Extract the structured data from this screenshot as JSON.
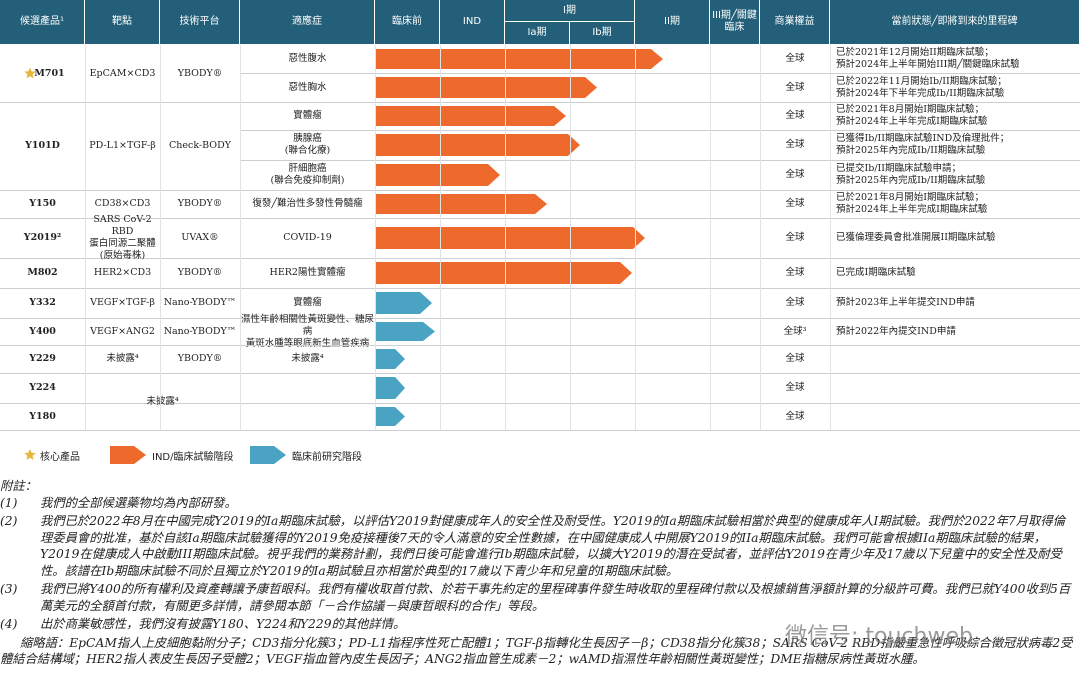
{
  "header": {
    "columns": [
      "候選產品¹",
      "靶點",
      "技術平台",
      "適應症",
      "臨床前",
      "IND",
      "I期",
      "Ia期",
      "Ib期",
      "II期",
      "III期╱關鍵臨床",
      "商業權益",
      "當前狀態╱即將到來的里程碑"
    ]
  },
  "programs": [
    {
      "candidate": "M701",
      "core": true,
      "target": "EpCAM×CD3",
      "platform": "YBODY®",
      "rows": [
        {
          "indication": "惡性腹水",
          "rights": "全球",
          "status": [
            "已於2021年12月開始II期臨床試驗；",
            "預計2024年上半年開始III期╱關鍵臨床試驗"
          ]
        },
        {
          "indication": "惡性胸水",
          "rights": "全球",
          "status": [
            "已於2022年11月開始Ib/II期臨床試驗；",
            "預計2024年下半年完成Ib/II期臨床試驗"
          ]
        }
      ]
    },
    {
      "candidate": "Y101D",
      "target": "PD-L1×TGF-β",
      "platform": "Check-BODY",
      "rows": [
        {
          "indication": "實體瘤",
          "rights": "全球",
          "status": [
            "已於2021年8月開始I期臨床試驗；",
            "預計2024年上半年完成I期臨床試驗"
          ]
        },
        {
          "indication": [
            "胰腺癌",
            "(聯合化療)"
          ],
          "rights": "全球",
          "status": [
            "已獲得Ib/II期臨床試驗IND及倫理批件；",
            "預計2025年內完成Ib/II期臨床試驗"
          ]
        },
        {
          "indication": [
            "肝細胞癌",
            "(聯合免疫抑制劑)"
          ],
          "rights": "全球",
          "status": [
            "已提交Ib/II期臨床試驗申請；",
            "預計2025年內完成Ib/II期臨床試驗"
          ]
        }
      ]
    },
    {
      "candidate": "Y150",
      "target": "CD38×CD3",
      "platform": "YBODY®",
      "rows": [
        {
          "indication": "復發╱難治性多發性骨髓瘤",
          "rights": "全球",
          "status": [
            "已於2021年8月開始I期臨床試驗；",
            "預計2024年上半年完成I期臨床試驗"
          ]
        }
      ]
    },
    {
      "candidate": "Y2019²",
      "target": [
        "SARS CoV-2 RBD",
        "蛋白同源二聚體",
        "(原始毒株)"
      ],
      "platform": "UVAX®",
      "rows": [
        {
          "indication": "COVID-19",
          "rights": "全球",
          "status": [
            "已獲倫理委員會批准開展II期臨床試驗"
          ]
        }
      ]
    },
    {
      "candidate": "M802",
      "target": "HER2×CD3",
      "platform": "YBODY®",
      "rows": [
        {
          "indication": "HER2陽性實體瘤",
          "rights": "全球",
          "status": [
            "已完成I期臨床試驗"
          ]
        }
      ]
    },
    {
      "candidate": "Y332",
      "target": "VEGF×TGF-β",
      "platform": "Nano-YBODY™",
      "rows": [
        {
          "indication": "實體瘤",
          "rights": "全球",
          "status": [
            "預計2023年上半年提交IND申請"
          ]
        }
      ]
    },
    {
      "candidate": "Y400",
      "target": "VEGF×ANG2",
      "platform": "Nano-YBODY™",
      "rows": [
        {
          "indication": [
            "濕性年齡相關性黃斑變性、糖尿病",
            "黃斑水腫等眼底新生血管疾病"
          ],
          "rights": "全球³",
          "status": [
            "預計2022年內提交IND申請"
          ]
        }
      ]
    },
    {
      "candidate": "Y229",
      "target": "未披露⁴",
      "platform": "YBODY®",
      "rows": [
        {
          "indication": "未披露⁴",
          "rights": "全球"
        }
      ]
    },
    {
      "candidate": "Y224",
      "span_label": "未披露⁴",
      "rows": [
        {
          "rights": "全球"
        }
      ]
    },
    {
      "candidate": "Y180",
      "rows": [
        {
          "rights": "全球"
        }
      ]
    }
  ],
  "legend": {
    "core": "核心產品",
    "ind": "IND/臨床試驗階段",
    "preclinical": "臨床前研究階段"
  },
  "notes": {
    "title": "附註：",
    "items": [
      {
        "marker": "(1)",
        "text": "我們的全部候選藥物均為內部研發。"
      },
      {
        "marker": "(2)",
        "text": "我們已於2022年8月在中國完成Y2019的Ia期臨床試驗，以評估Y2019對健康成年人的安全性及耐受性。Y2019的Ia期臨床試驗相當於典型的健康成年人I期試驗。我們於2022年7月取得倫理委員會的批准，基於自該Ia期臨床試驗獲得的Y2019免疫接種後7天的令人滿意的安全性數據，在中國健康成人中開展Y2019的IIa期臨床試驗。我們可能會根據IIa期臨床試驗的結果，Y2019在健康成人中啟動III期臨床試驗。視乎我們的業務計劃，我們日後可能會進行Ib期臨床試驗，以擴大Y2019的潛在受試者，並評估Y2019在青少年及17歲以下兒童中的安全性及耐受性。該譜在Ib期臨床試驗不同於且獨立於Y2019的Ia期試驗且亦相當於典型的17歲以下青少年和兒童的I期臨床試驗。"
      },
      {
        "marker": "(3)",
        "text": "我們已將Y400的所有權利及資產轉讓予康哲眼科。我們有權收取首付款、於若干事先約定的里程碑事件發生時收取的里程碑付款以及根據銷售淨額計算的分級許可費。我們已就Y400收到5百萬美元的全額首付款，有關更多詳情，請參閱本節「－合作協議－與康哲眼科的合作」等段。"
      },
      {
        "marker": "(4)",
        "text": "出於商業敏感性，我們沒有披露Y180、Y224和Y229的其他詳情。"
      }
    ],
    "abbreviations": "縮略語：EpCAM指人上皮細胞黏附分子；CD3指分化簇3；PD-L1指程序性死亡配體1；TGF-β指轉化生長因子－β；CD38指分化簇38；SARS CoV-2 RBD指嚴重急性呼吸綜合徵冠狀病毒2受體結合結構域；HER2指人表皮生長因子受體2；VEGF指血管內皮生長因子；ANG2指血管生成素－2；wAMD指濕性年齡相關性黃斑變性；DME指糖尿病性黃斑水腫。"
  },
  "watermark": "微信号: touchweb"
}
